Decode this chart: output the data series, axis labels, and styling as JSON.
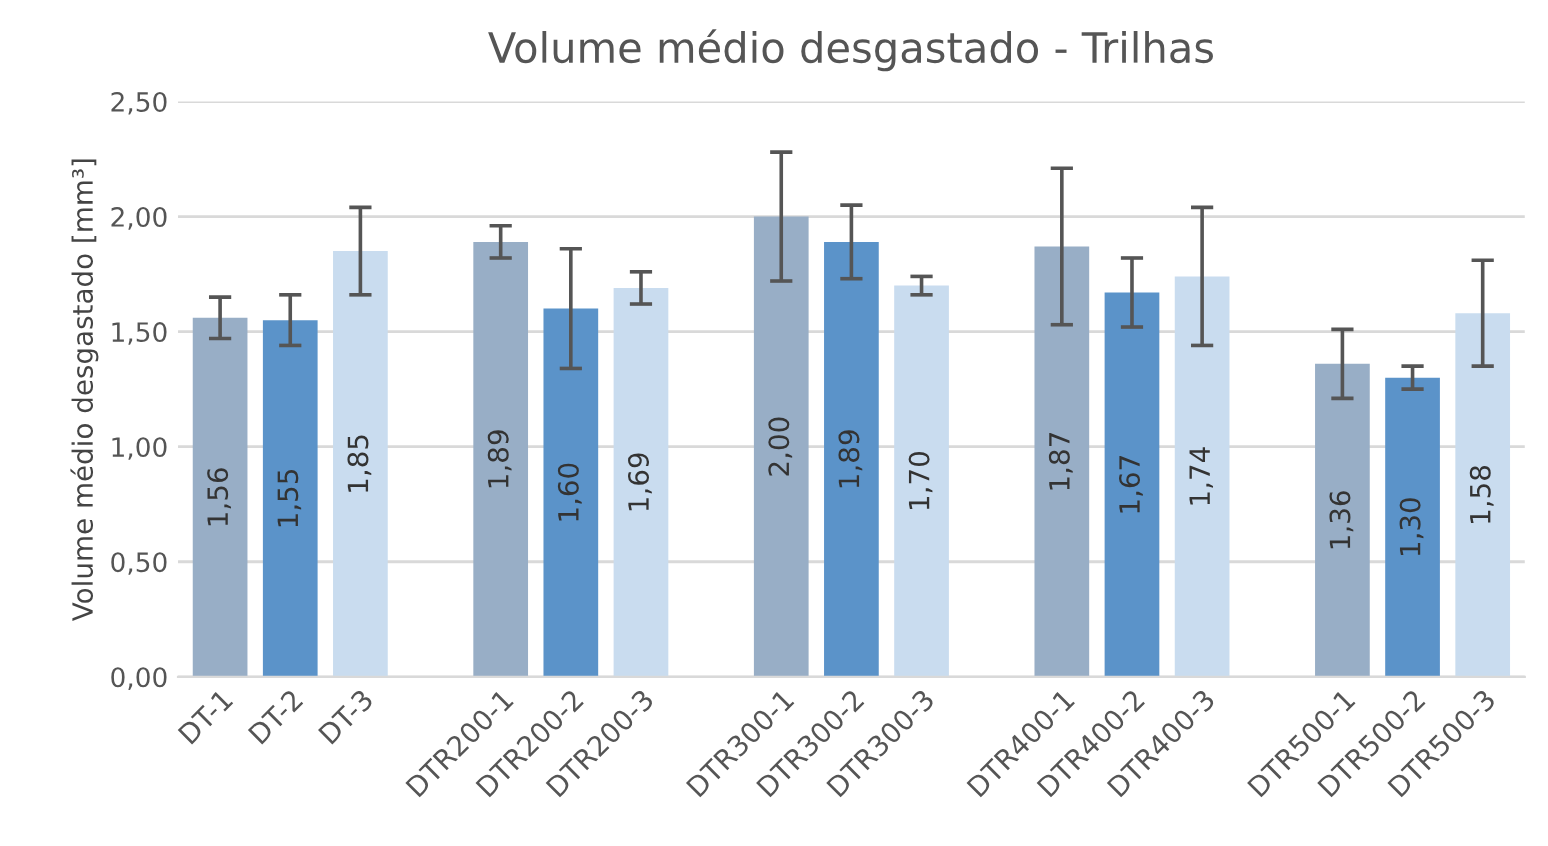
{
  "chart_data": {
    "type": "bar",
    "title": "Volume médio desgastado - Trilhas",
    "ylabel": "Volume médio desgastado [mm³]",
    "categories": [
      "DT-1",
      "DT-2",
      "DT-3",
      null,
      "DTR200-1",
      "DTR200-2",
      "DTR200-3",
      null,
      "DTR300-1",
      "DTR300-2",
      "DTR300-3",
      null,
      "DTR400-1",
      "DTR400-2",
      "DTR400-3",
      null,
      "DTR500-1",
      "DTR500-2",
      "DTR500-3"
    ],
    "values": [
      1.56,
      1.55,
      1.85,
      null,
      1.89,
      1.6,
      1.69,
      null,
      2.0,
      1.89,
      1.7,
      null,
      1.87,
      1.67,
      1.74,
      null,
      1.36,
      1.3,
      1.58
    ],
    "errors": [
      0.09,
      0.11,
      0.19,
      null,
      0.07,
      0.26,
      0.07,
      null,
      0.28,
      0.16,
      0.04,
      null,
      0.34,
      0.15,
      0.3,
      null,
      0.15,
      0.05,
      0.23
    ],
    "colors": [
      "#98aec6",
      "#5b93c9",
      "#c9dcef",
      null,
      "#98aec6",
      "#5b93c9",
      "#c9dcef",
      null,
      "#98aec6",
      "#5b93c9",
      "#c9dcef",
      null,
      "#98aec6",
      "#5b93c9",
      "#c9dcef",
      null,
      "#98aec6",
      "#5b93c9",
      "#c9dcef"
    ],
    "value_labels": [
      "1,56",
      "1,55",
      "1,85",
      null,
      "1,89",
      "1,60",
      "1,69",
      null,
      "2,00",
      "1,89",
      "1,70",
      null,
      "1,87",
      "1,67",
      "1,74",
      null,
      "1,36",
      "1,30",
      "1,58"
    ],
    "ylim": [
      0,
      2.5
    ],
    "yticks": [
      {
        "value": 0,
        "label": "0,00"
      },
      {
        "value": 0.5,
        "label": "0,50"
      },
      {
        "value": 1.0,
        "label": "1,00"
      },
      {
        "value": 1.5,
        "label": "1,50"
      },
      {
        "value": 2.0,
        "label": "2,00"
      },
      {
        "value": 2.5,
        "label": "2,50"
      }
    ],
    "grid": "y"
  }
}
